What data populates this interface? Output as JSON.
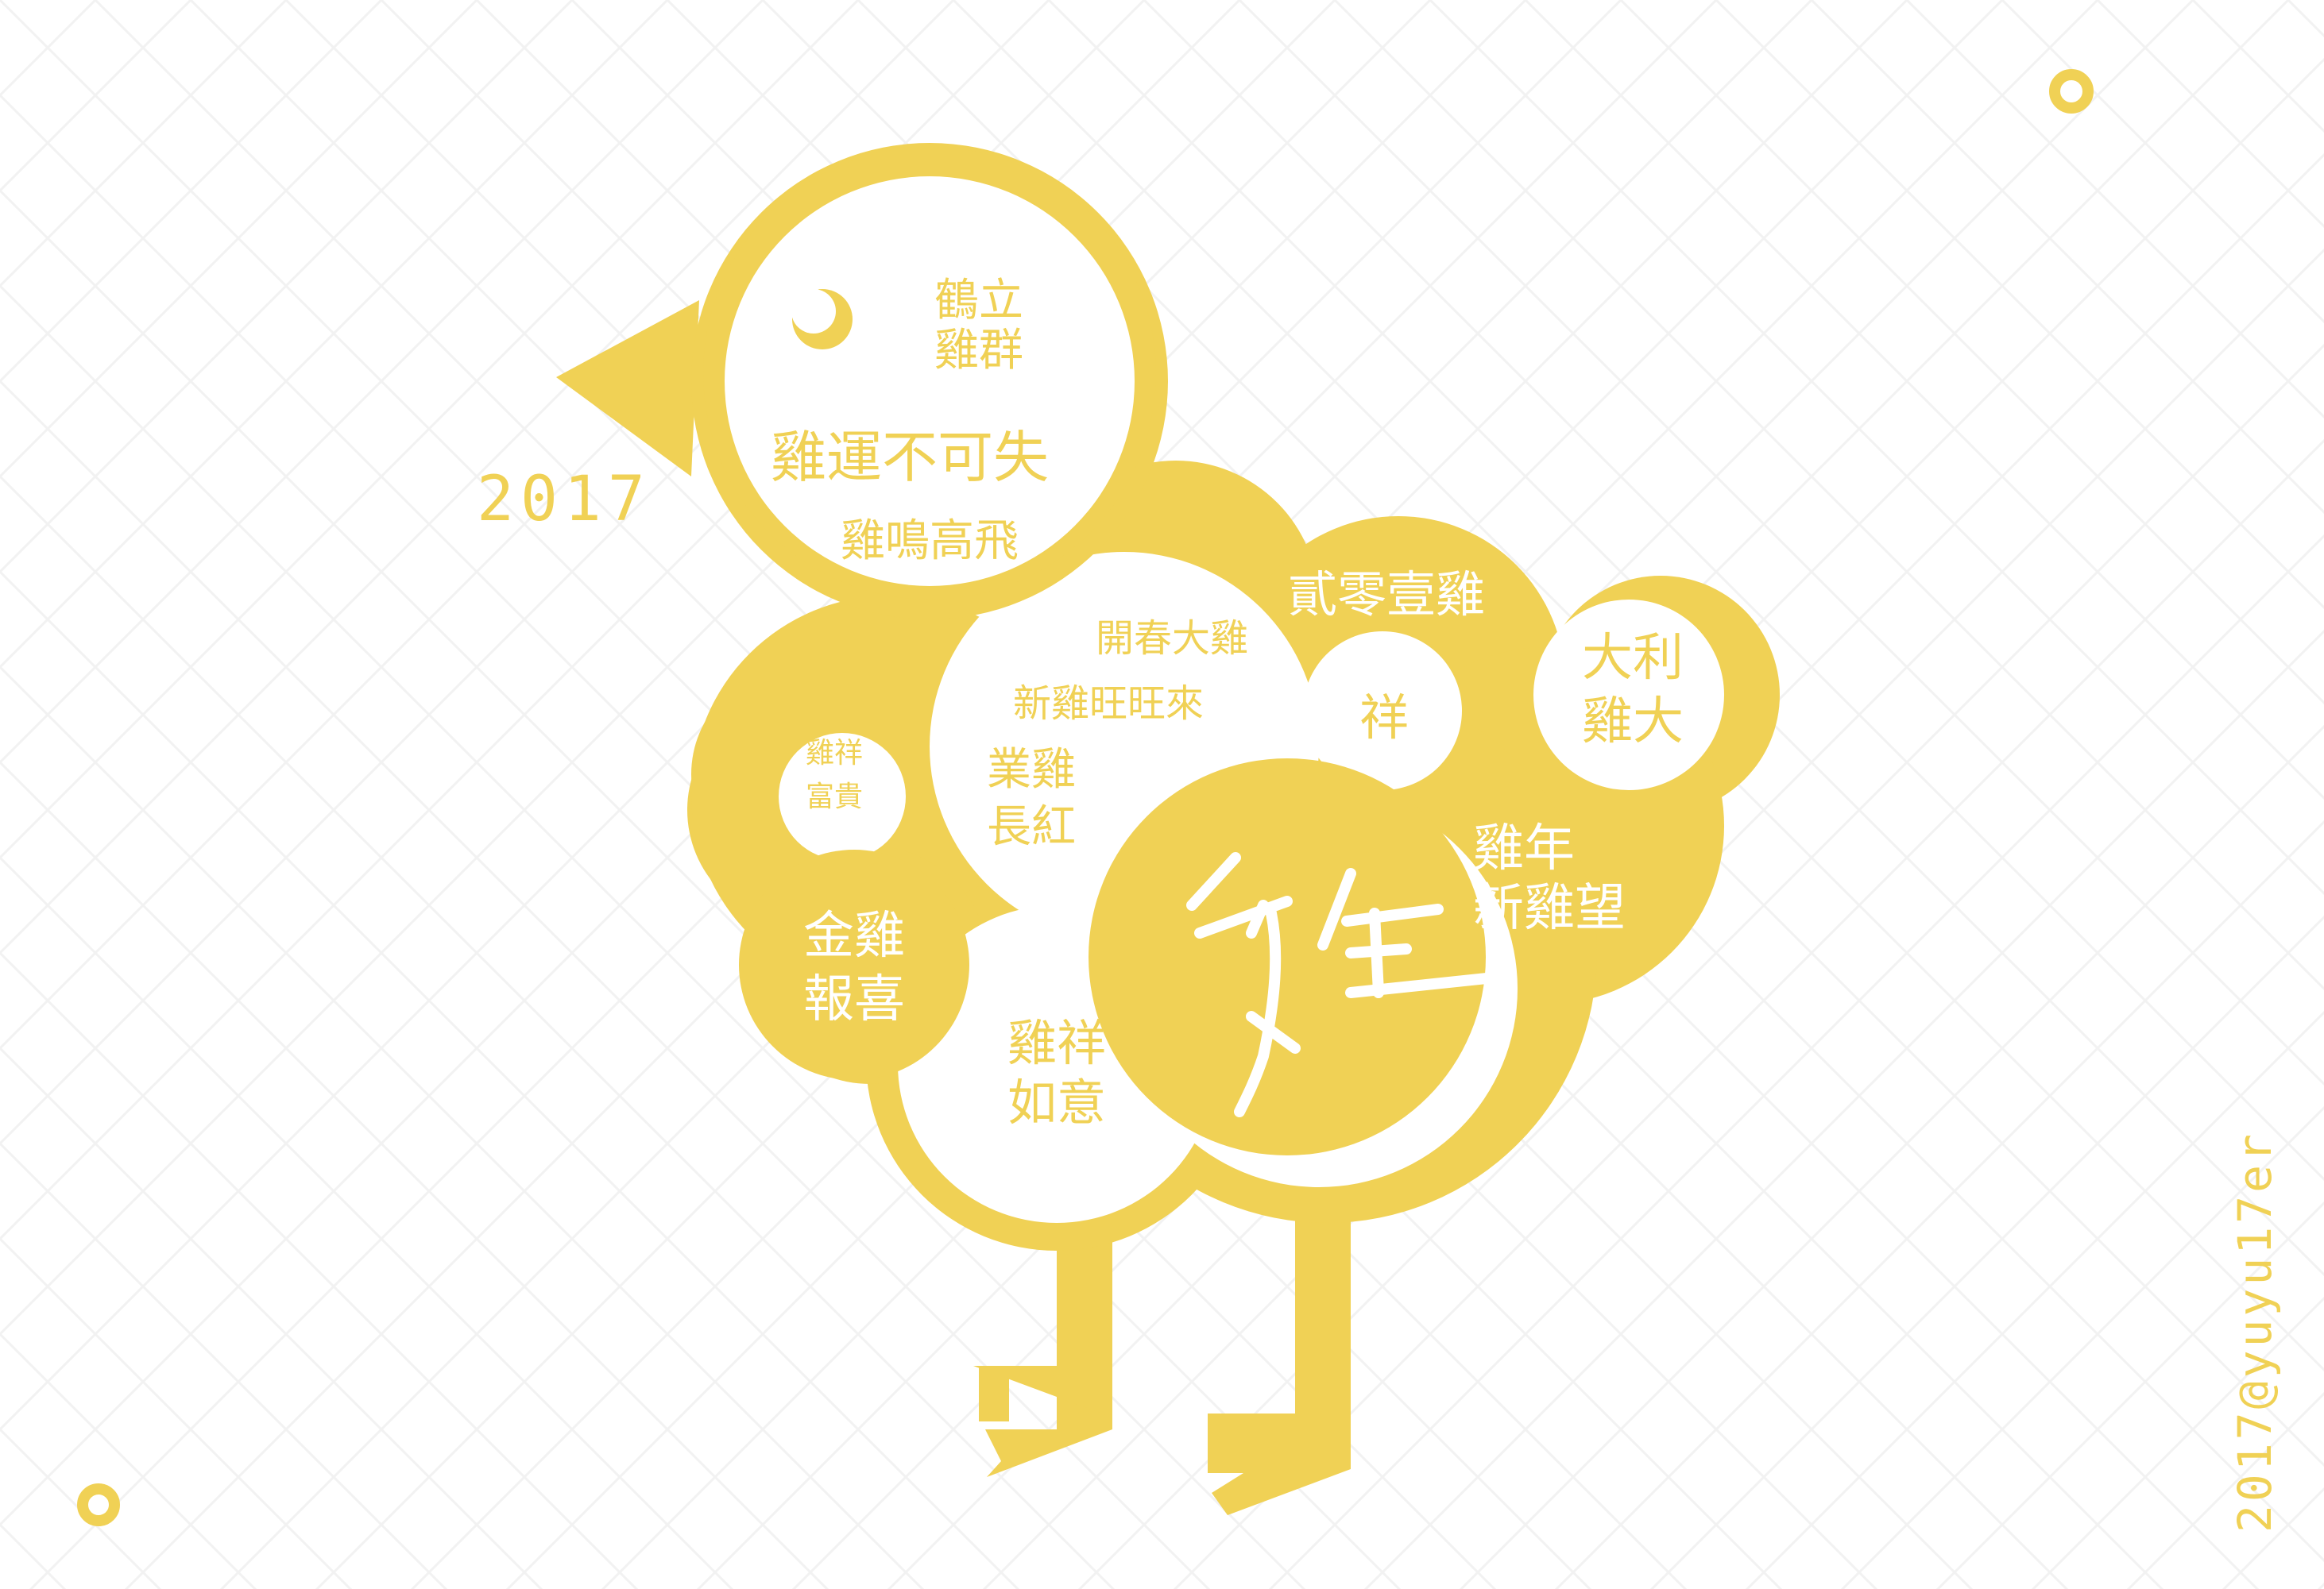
{
  "palette": {
    "yellow": "#F0D155",
    "white": "#FFFFFF",
    "grid": "#F2F2F2"
  },
  "year": "2017",
  "credit": "2017@yuyu17er",
  "phrases": {
    "head_top_1": "鶴立",
    "head_top_2": "雞群",
    "head_main": "雞運不可失",
    "head_bottom": "雞鳴高飛",
    "kaichun": "開春大雞",
    "xinji": "新雞旺旺來",
    "yeji_1": "業雞",
    "yeji_2": "長紅",
    "jixiang_small_1": "雞祥",
    "jixiang_small_2": "富貴",
    "ji_year": "貳零壹雞",
    "xiang": "祥",
    "dali_1": "大利",
    "dali_2": "雞大",
    "jinian_1": "雞年",
    "jinian_2": "新雞望",
    "jinji_1": "金雞",
    "jinji_2": "報喜",
    "ruyi_1": "雞祥",
    "ruyi_2": "如意"
  },
  "calligraphy_char": "雞",
  "icons": {
    "eye": "crescent-eye-icon",
    "ring_top": "ring-icon",
    "ring_bottom": "ring-icon"
  }
}
